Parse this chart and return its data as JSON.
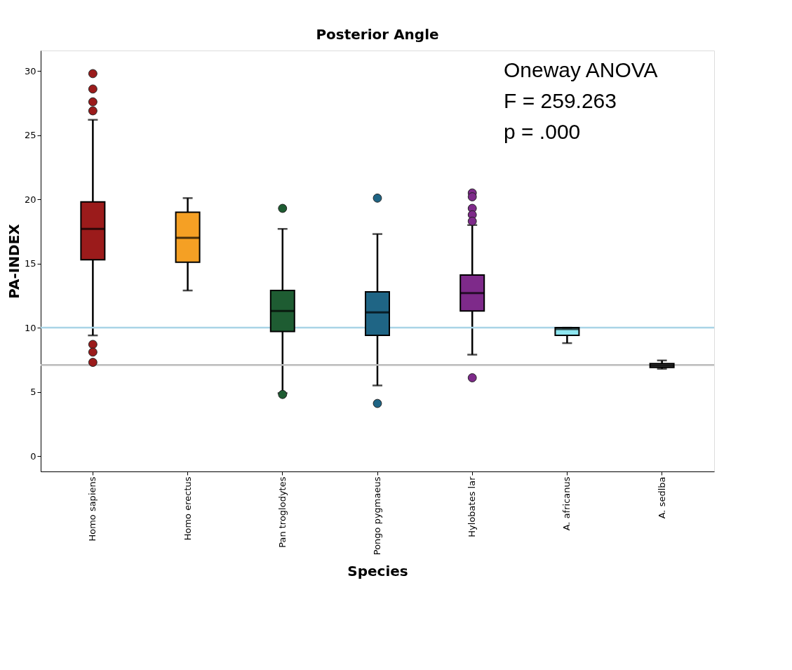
{
  "chart_data": {
    "type": "box",
    "title": "Posterior Angle",
    "xlabel": "Species",
    "ylabel": "PA-INDEX",
    "categories": [
      "Homo sapiens",
      "Homo erectus",
      "Pan troglodytes",
      "Pongo pygmaeus",
      "Hylobates lar",
      "A. africanus",
      "A. sedlba"
    ],
    "colors": [
      "#9b1b1b",
      "#f5a024",
      "#1e5c32",
      "#1f6585",
      "#7e2a8a",
      "#8ee6f0",
      "#555555"
    ],
    "boxes": [
      {
        "low": 9.4,
        "q1": 15.3,
        "median": 17.7,
        "q3": 19.8,
        "high": 26.2,
        "outliers": [
          29.8,
          28.6,
          27.6,
          26.9,
          8.7,
          8.1,
          7.3
        ]
      },
      {
        "low": 12.9,
        "q1": 15.1,
        "median": 17.0,
        "q3": 19.0,
        "high": 20.1
      },
      {
        "low": 4.9,
        "q1": 9.7,
        "median": 11.3,
        "q3": 12.9,
        "high": 17.7,
        "outliers": [
          19.3,
          4.8
        ]
      },
      {
        "low": 5.5,
        "q1": 9.4,
        "median": 11.2,
        "q3": 12.8,
        "high": 17.3,
        "outliers": [
          20.1,
          4.1
        ]
      },
      {
        "low": 7.9,
        "q1": 11.3,
        "median": 12.7,
        "q3": 14.1,
        "high": 18.0,
        "outliers": [
          20.5,
          20.2,
          19.3,
          18.8,
          18.3,
          6.1
        ]
      },
      {
        "low": 8.8,
        "q1": 9.4,
        "median": 9.9,
        "q3": 10.0,
        "high": 10.0
      },
      {
        "low": 6.8,
        "q1": 6.9,
        "median": 7.05,
        "q3": 7.2,
        "high": 7.45
      }
    ],
    "ylim": [
      -1.2,
      31.6
    ],
    "yticks": [
      0,
      5,
      10,
      15,
      20,
      25,
      30
    ],
    "grid": false,
    "ref_lines": [
      {
        "axis": "y",
        "value": 10,
        "color": "#a8d4e6"
      },
      {
        "axis": "y",
        "value": 7.1,
        "color": "#bbbbbb"
      }
    ],
    "annotations": [
      "Oneway ANOVA",
      "F = 259.263",
      "p = .000"
    ]
  }
}
